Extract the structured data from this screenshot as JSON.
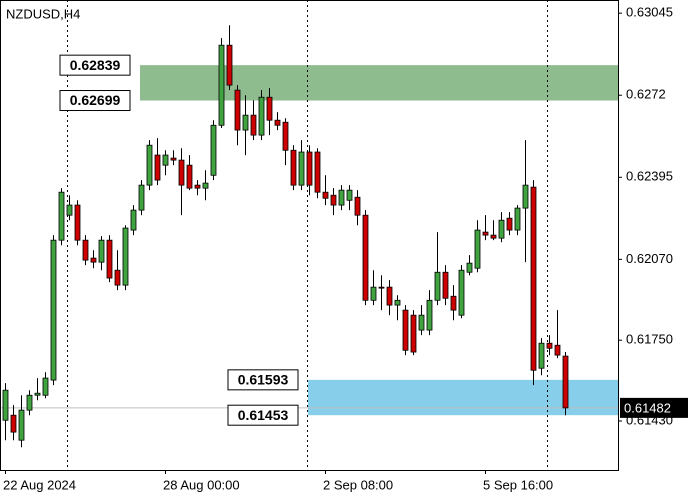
{
  "chart_data": {
    "type": "candlestick",
    "title": "NZDUSD,H4",
    "x": [
      "22 Aug 2024",
      null,
      null,
      null,
      null,
      null,
      null,
      null,
      null,
      null,
      null,
      null,
      null,
      null,
      null,
      null,
      null,
      null,
      null,
      null,
      "28 Aug 00:00",
      null,
      null,
      null,
      null,
      null,
      null,
      null,
      null,
      null,
      null,
      null,
      null,
      null,
      null,
      null,
      null,
      null,
      null,
      null,
      "2 Sep 08:00",
      null,
      null,
      null,
      null,
      null,
      null,
      null,
      null,
      null,
      null,
      null,
      null,
      null,
      null,
      null,
      null,
      null,
      null,
      null,
      "5 Sep 16:00",
      null,
      null,
      null,
      null,
      null,
      null,
      null,
      null,
      null,
      null
    ],
    "open": [
      0.61433,
      0.61453,
      0.61354,
      0.61473,
      0.61532,
      0.61532,
      0.61592,
      0.62146,
      0.62245,
      0.62285,
      0.62146,
      0.62075,
      0.62059,
      0.62146,
      0.62027,
      0.61968,
      0.62186,
      0.62265,
      0.62364,
      0.62483,
      0.62443,
      0.62471,
      0.62463,
      0.62443,
      0.62364,
      0.62352,
      0.62403,
      0.62601,
      0.62918,
      0.6274,
      0.62582,
      0.62641,
      0.62562,
      0.62712,
      0.62621,
      0.62613,
      0.62502,
      0.62364,
      0.62495,
      0.62495,
      0.62336,
      0.62324,
      0.62285,
      0.62304,
      0.62316,
      0.62245,
      0.61908,
      0.6196,
      0.6196,
      0.61889,
      0.61869,
      0.61849,
      0.6179,
      0.6179,
      0.61908,
      0.62019,
      0.61924,
      0.61849,
      0.62019,
      0.62035,
      0.62178,
      0.62166,
      0.62154,
      0.62233,
      0.62186,
      0.62273,
      0.62356,
      0.61639,
      0.61738,
      0.6173,
      0.61687
    ],
    "high": [
      0.6158,
      0.61493,
      0.61532,
      0.61552,
      0.616,
      0.61623,
      0.62166,
      0.62352,
      0.62324,
      0.62304,
      0.62166,
      0.62106,
      0.62162,
      0.62166,
      0.62106,
      0.62205,
      0.62285,
      0.62384,
      0.62542,
      0.6255,
      0.62502,
      0.62502,
      0.6251,
      0.62483,
      0.62384,
      0.62423,
      0.62621,
      0.62946,
      0.62997,
      0.6276,
      0.6272,
      0.627,
      0.6274,
      0.62748,
      0.62653,
      0.62629,
      0.62522,
      0.62542,
      0.62522,
      0.6251,
      0.62403,
      0.62352,
      0.62364,
      0.62364,
      0.62344,
      0.62265,
      0.62027,
      0.62007,
      0.61988,
      0.61928,
      0.61889,
      0.61869,
      0.61889,
      0.61948,
      0.62178,
      0.62047,
      0.61968,
      0.62047,
      0.62087,
      0.62225,
      0.62245,
      0.62225,
      0.62257,
      0.62257,
      0.62285,
      0.62542,
      0.62384,
      0.61758,
      0.6177,
      0.61869,
      0.61703
    ],
    "low": [
      0.61354,
      0.61354,
      0.61326,
      0.61453,
      0.61512,
      0.6152,
      0.61572,
      0.62126,
      0.62225,
      0.62126,
      0.62047,
      0.62035,
      0.62027,
      0.6198,
      0.61948,
      0.61948,
      0.62166,
      0.62245,
      0.62344,
      0.62364,
      0.62403,
      0.62443,
      0.62245,
      0.62344,
      0.62324,
      0.62304,
      0.62384,
      0.6259,
      0.6274,
      0.62522,
      0.62483,
      0.62542,
      0.62542,
      0.62562,
      0.62582,
      0.62443,
      0.62344,
      0.62344,
      0.62324,
      0.62312,
      0.62285,
      0.62245,
      0.62265,
      0.62265,
      0.62205,
      0.61889,
      0.61889,
      0.61869,
      0.61849,
      0.61829,
      0.61691,
      0.61691,
      0.6177,
      0.6177,
      0.61889,
      0.61889,
      0.61829,
      0.61837,
      0.62007,
      0.62019,
      0.62146,
      0.62146,
      0.62138,
      0.62166,
      0.62166,
      0.62059,
      0.61572,
      0.61611,
      0.61691,
      0.61679,
      0.61453
    ],
    "close": [
      0.61552,
      0.61386,
      0.61473,
      0.61532,
      0.6154,
      0.616,
      0.62146,
      0.62336,
      0.62285,
      0.62146,
      0.62067,
      0.62059,
      0.62146,
      0.61996,
      0.61968,
      0.62194,
      0.62265,
      0.62364,
      0.62522,
      0.62384,
      0.62483,
      0.62463,
      0.62364,
      0.62352,
      0.62352,
      0.62372,
      0.62601,
      0.62918,
      0.6276,
      0.62582,
      0.62641,
      0.62562,
      0.62712,
      0.62621,
      0.62601,
      0.62502,
      0.62364,
      0.62495,
      0.62364,
      0.62336,
      0.62312,
      0.62285,
      0.62344,
      0.62344,
      0.62245,
      0.61908,
      0.6196,
      0.61956,
      0.61889,
      0.61908,
      0.6171,
      0.61703,
      0.61849,
      0.61908,
      0.62019,
      0.61916,
      0.61869,
      0.62027,
      0.62055,
      0.62186,
      0.62166,
      0.62154,
      0.62225,
      0.62186,
      0.62273,
      0.62364,
      0.61631,
      0.61738,
      0.61718,
      0.61691,
      0.61482
    ],
    "up_color": "#3fa33f",
    "down_color": "#cc0000",
    "ylim": [
      0.61236,
      0.63097
    ],
    "yticks": [
      0.63045,
      0.6272,
      0.62395,
      {
        "value": 0.6207,
        "label": "0.62070"
      },
      {
        "value": 0.6175,
        "label": "0.61750"
      },
      {
        "value": 0.6143,
        "label": "0.61430"
      }
    ],
    "current_price": 0.61482,
    "zones": [
      {
        "high": 0.62839,
        "low": 0.62699,
        "color": "#8fbc8f"
      },
      {
        "high": 0.61593,
        "low": 0.61453,
        "color": "#87ceeb"
      }
    ]
  }
}
